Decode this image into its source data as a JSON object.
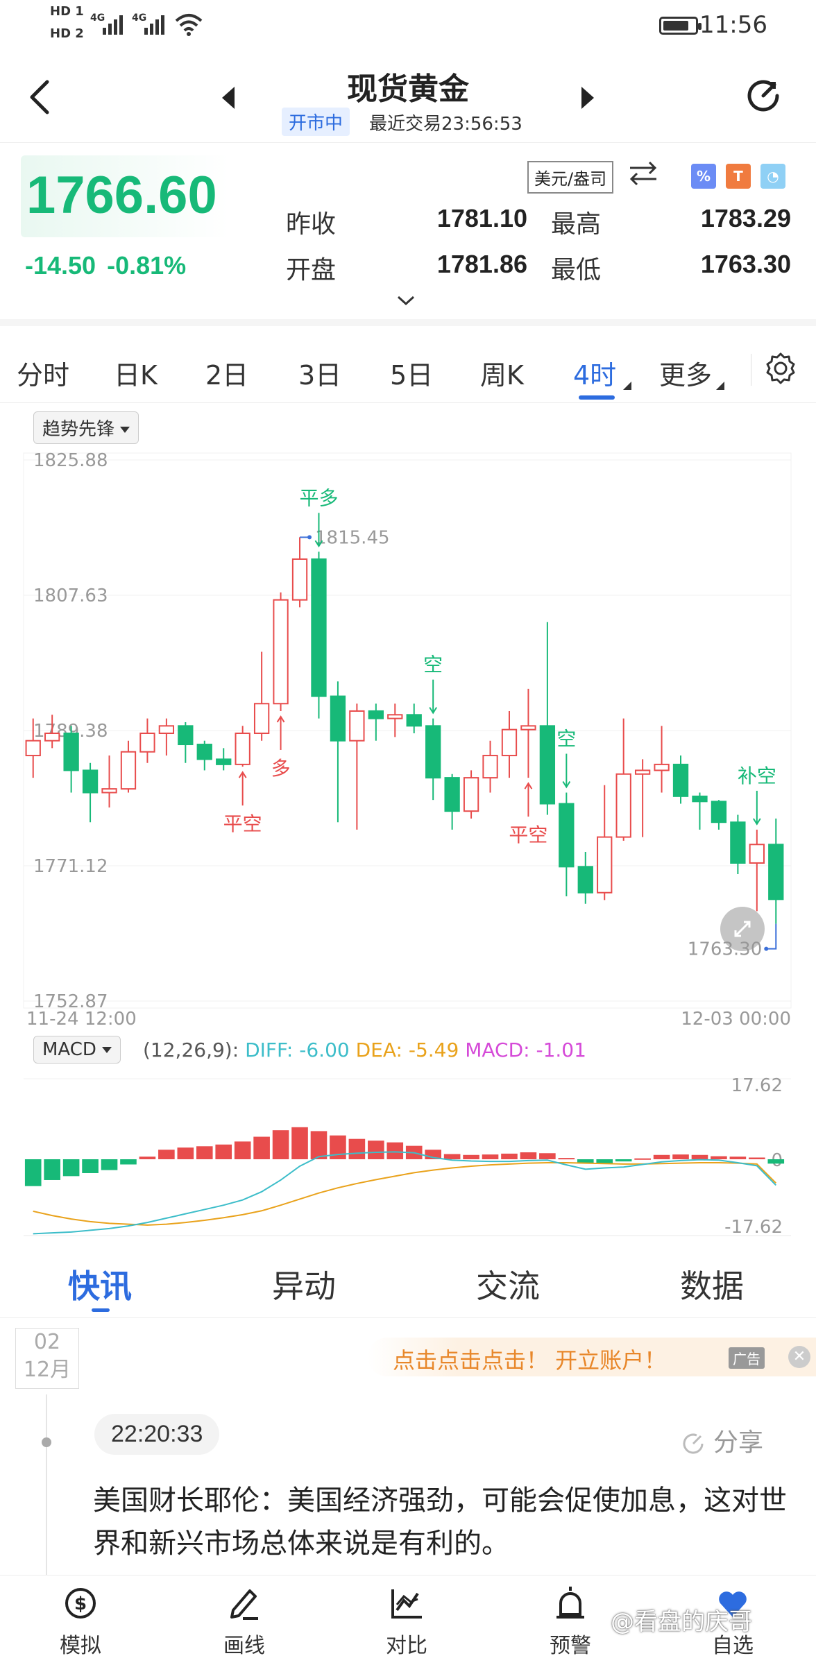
{
  "status": {
    "hd1": "HD 1",
    "hd2": "HD 2",
    "net1": "4G",
    "net2": "4G",
    "time": "11:56"
  },
  "header": {
    "title": "现货黄金",
    "status_badge": "开市中",
    "last_trade": "最近交易23:56:53"
  },
  "quote": {
    "price": "1766.60",
    "change": "-14.50",
    "change_pct": "-0.81%",
    "unit": "美元/盎司",
    "prev_close_label": "昨收",
    "prev_close": "1781.10",
    "high_label": "最高",
    "high": "1783.29",
    "open_label": "开盘",
    "open": "1781.86",
    "low_label": "最低",
    "low": "1763.30",
    "colors": {
      "down": "#17b978",
      "up": "#e84c4c",
      "accent": "#2d6cdf"
    }
  },
  "periods": {
    "items": [
      "分时",
      "日K",
      "2日",
      "3日",
      "5日",
      "周K",
      "4时",
      "更多"
    ],
    "active": "4时"
  },
  "chart_data": [
    {
      "type": "candlestick",
      "indicator": "趋势先锋",
      "y_ticks": [
        "1825.88",
        "1807.63",
        "1789.38",
        "1771.12",
        "1752.87"
      ],
      "ylim": [
        1752.87,
        1825.88
      ],
      "x_start": "11-24 12:00",
      "x_end": "12-03 00:00",
      "max_label": "1815.45",
      "min_label": "1763.30",
      "candles": [
        {
          "o": 1786.0,
          "c": 1788.0,
          "h": 1791.0,
          "l": 1783.0
        },
        {
          "o": 1788.0,
          "c": 1789.0,
          "h": 1791.5,
          "l": 1787.0
        },
        {
          "o": 1789.0,
          "c": 1784.0,
          "h": 1790.0,
          "l": 1781.0
        },
        {
          "o": 1784.0,
          "c": 1781.0,
          "h": 1785.0,
          "l": 1777.0
        },
        {
          "o": 1781.0,
          "c": 1781.5,
          "h": 1786.0,
          "l": 1779.0
        },
        {
          "o": 1781.5,
          "c": 1786.5,
          "h": 1788.0,
          "l": 1781.0
        },
        {
          "o": 1786.5,
          "c": 1789.0,
          "h": 1791.0,
          "l": 1785.0
        },
        {
          "o": 1789.0,
          "c": 1790.0,
          "h": 1791.0,
          "l": 1786.0
        },
        {
          "o": 1790.0,
          "c": 1787.5,
          "h": 1790.5,
          "l": 1785.0
        },
        {
          "o": 1787.5,
          "c": 1785.5,
          "h": 1788.0,
          "l": 1784.0
        },
        {
          "o": 1785.5,
          "c": 1784.8,
          "h": 1787.0,
          "l": 1784.0
        },
        {
          "o": 1784.8,
          "c": 1789.0,
          "h": 1790.0,
          "l": 1784.5
        },
        {
          "o": 1789.0,
          "c": 1793.0,
          "h": 1800.0,
          "l": 1788.0
        },
        {
          "o": 1793.0,
          "c": 1807.0,
          "h": 1808.0,
          "l": 1792.0
        },
        {
          "o": 1807.0,
          "c": 1812.5,
          "h": 1815.45,
          "l": 1806.0
        },
        {
          "o": 1812.5,
          "c": 1794.0,
          "h": 1813.5,
          "l": 1791.0
        },
        {
          "o": 1794.0,
          "c": 1788.0,
          "h": 1796.0,
          "l": 1777.0
        },
        {
          "o": 1788.0,
          "c": 1792.0,
          "h": 1793.0,
          "l": 1776.0
        },
        {
          "o": 1792.0,
          "c": 1791.0,
          "h": 1793.0,
          "l": 1788.0
        },
        {
          "o": 1791.0,
          "c": 1791.5,
          "h": 1793.0,
          "l": 1788.5
        },
        {
          "o": 1791.5,
          "c": 1790.0,
          "h": 1793.0,
          "l": 1789.0
        },
        {
          "o": 1790.0,
          "c": 1783.0,
          "h": 1791.0,
          "l": 1780.0
        },
        {
          "o": 1783.0,
          "c": 1778.5,
          "h": 1783.5,
          "l": 1776.0
        },
        {
          "o": 1778.5,
          "c": 1783.0,
          "h": 1784.0,
          "l": 1777.5
        },
        {
          "o": 1783.0,
          "c": 1786.0,
          "h": 1788.0,
          "l": 1781.0
        },
        {
          "o": 1786.0,
          "c": 1789.5,
          "h": 1792.0,
          "l": 1783.0
        },
        {
          "o": 1789.5,
          "c": 1790.0,
          "h": 1795.0,
          "l": 1783.0
        },
        {
          "o": 1790.0,
          "c": 1779.5,
          "h": 1804.0,
          "l": 1778.0
        },
        {
          "o": 1779.5,
          "c": 1771.0,
          "h": 1781.0,
          "l": 1767.0
        },
        {
          "o": 1771.0,
          "c": 1767.5,
          "h": 1773.0,
          "l": 1766.0
        },
        {
          "o": 1767.5,
          "c": 1775.0,
          "h": 1782.0,
          "l": 1766.5
        },
        {
          "o": 1775.0,
          "c": 1783.5,
          "h": 1791.0,
          "l": 1774.5
        },
        {
          "o": 1783.5,
          "c": 1784.0,
          "h": 1785.5,
          "l": 1775.0
        },
        {
          "o": 1784.0,
          "c": 1784.8,
          "h": 1790.0,
          "l": 1781.0
        },
        {
          "o": 1784.8,
          "c": 1780.5,
          "h": 1786.0,
          "l": 1779.5
        },
        {
          "o": 1780.5,
          "c": 1779.8,
          "h": 1781.0,
          "l": 1776.0
        },
        {
          "o": 1779.8,
          "c": 1777.0,
          "h": 1780.0,
          "l": 1776.0
        },
        {
          "o": 1777.0,
          "c": 1771.5,
          "h": 1778.0,
          "l": 1770.0
        },
        {
          "o": 1771.5,
          "c": 1774.0,
          "h": 1776.0,
          "l": 1765.0
        },
        {
          "o": 1774.0,
          "c": 1766.6,
          "h": 1777.5,
          "l": 1763.3
        }
      ],
      "signals": [
        {
          "index": 11,
          "text": "平空",
          "dir": "up"
        },
        {
          "index": 13,
          "text": "多",
          "dir": "up"
        },
        {
          "index": 15,
          "text": "平多",
          "dir": "down"
        },
        {
          "index": 21,
          "text": "空",
          "dir": "down"
        },
        {
          "index": 26,
          "text": "平空",
          "dir": "up"
        },
        {
          "index": 28,
          "text": "空",
          "dir": "down"
        },
        {
          "index": 38,
          "text": "补空",
          "dir": "down"
        }
      ]
    },
    {
      "type": "bar",
      "indicator": "MACD",
      "params": "(12,26,9):",
      "diff_label": "DIFF: -6.00",
      "dea_label": "DEA: -5.49",
      "macd_label": "MACD: -1.01",
      "y_top": "17.62",
      "y_zero": "0",
      "y_bottom": "-17.62",
      "ylim": [
        -17.62,
        17.62
      ],
      "hist": [
        -6.2,
        -4.8,
        -3.9,
        -3.2,
        -2.5,
        -1.2,
        0.6,
        2.2,
        2.7,
        3.0,
        3.4,
        4.1,
        5.2,
        6.7,
        7.4,
        6.5,
        5.5,
        4.7,
        4.3,
        3.9,
        3.1,
        2.2,
        1.2,
        1.0,
        1.1,
        1.3,
        1.6,
        1.4,
        0.3,
        -0.9,
        -0.9,
        -0.5,
        0.2,
        1.0,
        1.1,
        1.0,
        0.7,
        0.6,
        0.4,
        -1.01
      ],
      "diff": [
        -17.2,
        -17.0,
        -16.8,
        -16.4,
        -16.0,
        -15.4,
        -14.6,
        -13.6,
        -12.6,
        -11.6,
        -10.6,
        -9.4,
        -7.5,
        -4.8,
        -1.6,
        0.6,
        1.1,
        1.4,
        1.6,
        1.7,
        1.5,
        0.4,
        -0.2,
        -0.4,
        -0.5,
        -0.5,
        -0.3,
        -0.2,
        -1.3,
        -2.3,
        -2.0,
        -1.8,
        -1.2,
        -0.6,
        -0.3,
        -0.1,
        -0.2,
        -0.8,
        -1.5,
        -6.0
      ],
      "dea": [
        -12.0,
        -13.0,
        -13.8,
        -14.4,
        -14.8,
        -15.0,
        -15.2,
        -15.0,
        -14.6,
        -14.1,
        -13.5,
        -12.8,
        -11.9,
        -10.6,
        -9.2,
        -7.8,
        -6.6,
        -5.6,
        -4.7,
        -3.9,
        -3.1,
        -2.5,
        -2.0,
        -1.6,
        -1.3,
        -1.1,
        -0.9,
        -0.8,
        -0.8,
        -0.9,
        -1.0,
        -1.1,
        -1.1,
        -1.0,
        -0.9,
        -0.8,
        -0.8,
        -0.9,
        -1.1,
        -5.49
      ]
    }
  ],
  "news_tabs": {
    "items": [
      "快讯",
      "异动",
      "交流",
      "数据"
    ],
    "active": "快讯"
  },
  "news": {
    "date_day": "02",
    "date_month": "12月",
    "ad_text": "点击点击点击！ 开立账户！",
    "ad_tag": "广告",
    "time": "22:20:33",
    "share_label": "分享",
    "text": "美国财长耶伦：美国经济强劲，可能会促使加息，这对世界和新兴市场总体来说是有利的。"
  },
  "bottom_nav": {
    "items": [
      {
        "label": "模拟",
        "icon": "dollar-circle-icon"
      },
      {
        "label": "画线",
        "icon": "pen-icon"
      },
      {
        "label": "对比",
        "icon": "chart-compare-icon"
      },
      {
        "label": "预警",
        "icon": "alarm-icon"
      },
      {
        "label": "自选",
        "icon": "heart-icon"
      }
    ]
  },
  "watermark": "@看盘的庆哥"
}
